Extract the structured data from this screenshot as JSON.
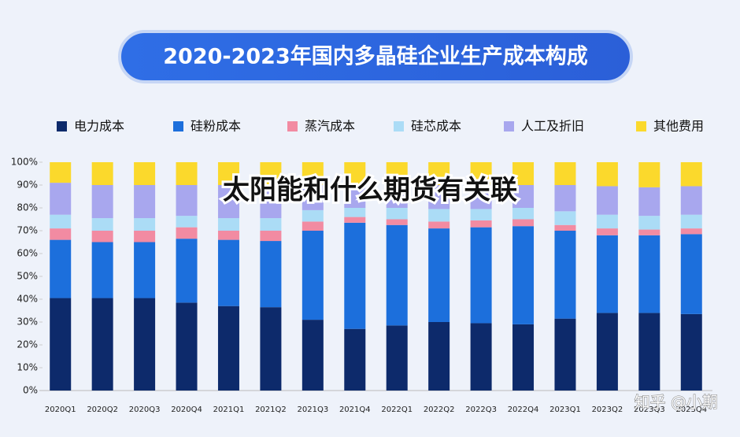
{
  "chart_data": {
    "type": "stacked_bar_percent",
    "title": "2020-2023年国内多晶硅企业生产成本构成",
    "overlay_text": "太阳能和什么期货有关联",
    "watermark": "知乎 @小期",
    "categories": [
      "2020Q1",
      "2020Q2",
      "2020Q3",
      "2020Q4",
      "2021Q1",
      "2021Q2",
      "2021Q3",
      "2021Q4",
      "2022Q1",
      "2022Q2",
      "2022Q3",
      "2022Q4",
      "2023Q1",
      "2023Q2",
      "2023Q3",
      "2023Q4"
    ],
    "series": [
      {
        "name": "电力成本",
        "color": "#0d2a6b",
        "values": [
          40.5,
          40.5,
          40.5,
          38.5,
          37,
          36.5,
          31,
          27,
          28.5,
          30,
          29.5,
          29,
          31.5,
          34,
          34,
          33.5
        ]
      },
      {
        "name": "硅粉成本",
        "color": "#1c6fdc",
        "values": [
          25.5,
          24.5,
          24.5,
          28,
          29,
          29,
          39,
          46.5,
          44,
          41,
          42,
          43,
          38.5,
          34,
          34,
          35
        ]
      },
      {
        "name": "蒸汽成本",
        "color": "#f28ba2",
        "values": [
          5,
          5,
          5,
          5,
          4,
          4.5,
          4,
          2.5,
          2.5,
          3,
          3,
          3,
          2.5,
          3,
          2.5,
          2.5
        ]
      },
      {
        "name": "硅芯成本",
        "color": "#abdcf6",
        "values": [
          6,
          5.5,
          5.5,
          5,
          5.5,
          5.5,
          5,
          4,
          5,
          5.5,
          5,
          5,
          6,
          6,
          6,
          6
        ]
      },
      {
        "name": "人工及折旧",
        "color": "#a8a7ee",
        "values": [
          14,
          14.5,
          14.5,
          13.5,
          14.5,
          14.5,
          11,
          10,
          10,
          10.5,
          10.5,
          10,
          11.5,
          12.5,
          12.5,
          12.5
        ]
      },
      {
        "name": "其他费用",
        "color": "#fbd92c",
        "values": [
          9,
          10,
          10,
          10,
          10,
          10,
          10,
          10,
          10,
          10,
          10,
          10,
          10,
          10.5,
          11,
          10.5
        ]
      }
    ],
    "ylim": [
      0,
      100
    ],
    "yticks": [
      {
        "value": 0,
        "label": "0%"
      },
      {
        "value": 10,
        "label": "10%"
      },
      {
        "value": 20,
        "label": "20%"
      },
      {
        "value": 30,
        "label": "30%"
      },
      {
        "value": 40,
        "label": "40%"
      },
      {
        "value": 50,
        "label": "50%"
      },
      {
        "value": 60,
        "label": "60%"
      },
      {
        "value": 70,
        "label": "70%"
      },
      {
        "value": 80,
        "label": "80%"
      },
      {
        "value": 90,
        "label": "90%"
      },
      {
        "value": 100,
        "label": "100%"
      }
    ],
    "legend": "top"
  }
}
